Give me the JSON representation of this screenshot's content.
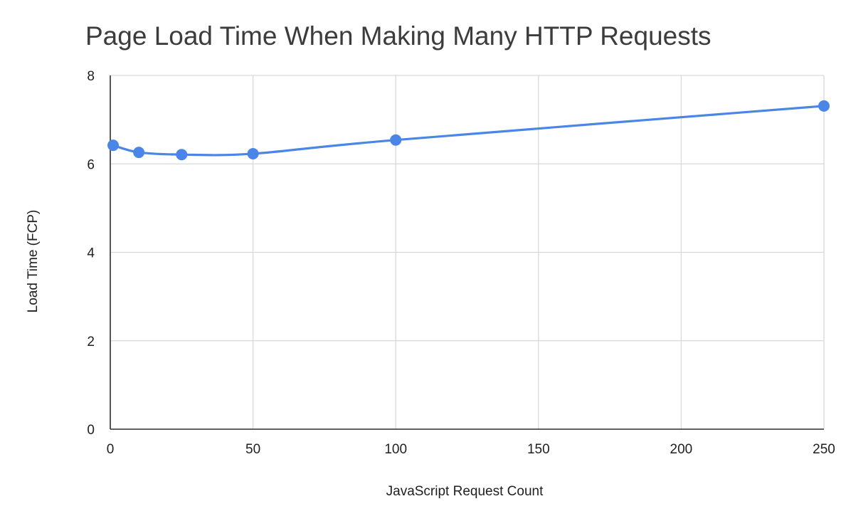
{
  "chart_data": {
    "type": "line",
    "title": "Page Load Time When Making Many HTTP Requests",
    "xlabel": "JavaScript Request Count",
    "ylabel": "Load Time (FCP)",
    "xlim": [
      0,
      250
    ],
    "ylim": [
      0,
      8
    ],
    "x_ticks": [
      "0",
      "50",
      "100",
      "150",
      "200",
      "250"
    ],
    "y_ticks": [
      "0",
      "2",
      "4",
      "6",
      "8"
    ],
    "grid": true,
    "legend": "none",
    "series": [
      {
        "color": "#4a86e8",
        "points": [
          {
            "x": 1,
            "y": 6.42
          },
          {
            "x": 10,
            "y": 6.26
          },
          {
            "x": 25,
            "y": 6.21
          },
          {
            "x": 50,
            "y": 6.23
          },
          {
            "x": 100,
            "y": 6.54
          },
          {
            "x": 250,
            "y": 7.31
          }
        ]
      }
    ]
  }
}
